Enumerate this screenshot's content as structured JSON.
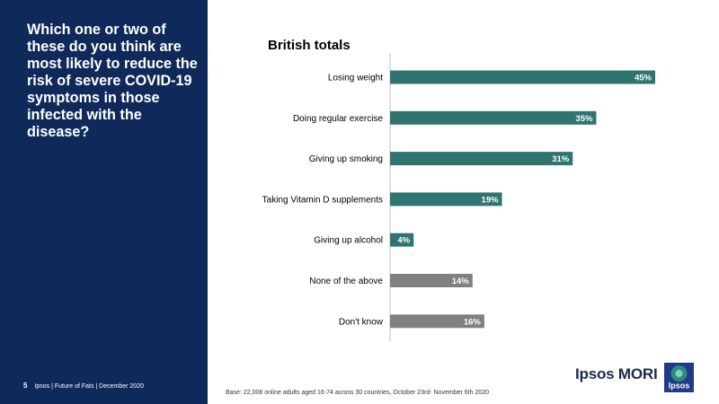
{
  "sidebar": {
    "question": "Which one or two of these do you think are most likely to reduce the risk of severe COVID-19 symptoms in those infected with the disease?",
    "page_number": "5",
    "footer_text": "Ipsos | Future of Fats | December 2020"
  },
  "base_note": "Base: 22,008 online adults aged 16-74 across 30 countries, October 23rd- November  6th 2020",
  "brand": {
    "name": "Ipsos MORI",
    "logo_text": "Ipsos"
  },
  "colors": {
    "sidebar": "#0f2a5a",
    "teal": "#2f7470",
    "grey": "#808080",
    "logo_blue": "#1f3a8a",
    "logo_green": "#2a8c7a"
  },
  "chart_data": {
    "type": "bar",
    "orientation": "horizontal",
    "title": "British totals",
    "categories": [
      "Losing weight",
      "Doing regular exercise",
      "Giving up smoking",
      "Taking Vitamin D supplements",
      "Giving up alcohol",
      "None of the above",
      "Don't know"
    ],
    "values": [
      45,
      35,
      31,
      19,
      4,
      14,
      16
    ],
    "value_labels": [
      "45%",
      "35%",
      "31%",
      "19%",
      "4%",
      "14%",
      "16%"
    ],
    "bar_colors": [
      "teal",
      "teal",
      "teal",
      "teal",
      "teal",
      "grey",
      "grey"
    ],
    "xlim": [
      0,
      45
    ],
    "xlabel": "",
    "ylabel": "",
    "grid": false
  }
}
